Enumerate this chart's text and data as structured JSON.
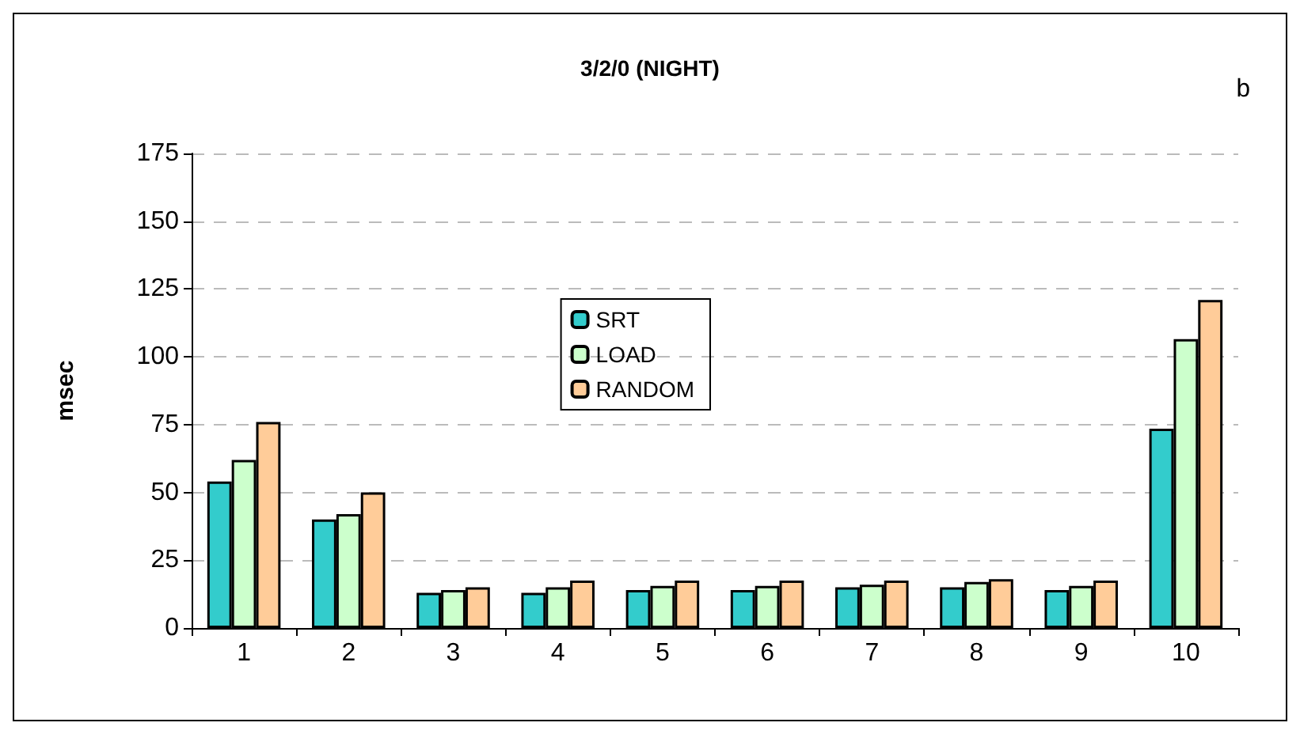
{
  "chart_data": {
    "type": "bar",
    "title": "3/2/0 (NIGHT)",
    "ylabel": "msec",
    "annotations": [
      "b"
    ],
    "categories": [
      "1",
      "2",
      "3",
      "4",
      "5",
      "6",
      "7",
      "8",
      "9",
      "10"
    ],
    "series": [
      {
        "name": "SRT",
        "color": "#33cccc",
        "values": [
          54,
          40,
          13,
          13,
          14,
          14,
          15,
          15,
          14,
          73.5
        ]
      },
      {
        "name": "LOAD",
        "color": "#ccffcc",
        "values": [
          62,
          42,
          14,
          15,
          15.5,
          15.5,
          16,
          17,
          15.5,
          106.5
        ]
      },
      {
        "name": "RANDOM",
        "color": "#ffcc99",
        "values": [
          76,
          50,
          15,
          17.5,
          17.5,
          17.5,
          17.5,
          18,
          17.5,
          121
        ]
      }
    ],
    "ylim": [
      0,
      175
    ],
    "yticks": [
      0,
      25,
      50,
      75,
      100,
      125,
      150,
      175
    ],
    "grid": "y",
    "legend": "top"
  }
}
